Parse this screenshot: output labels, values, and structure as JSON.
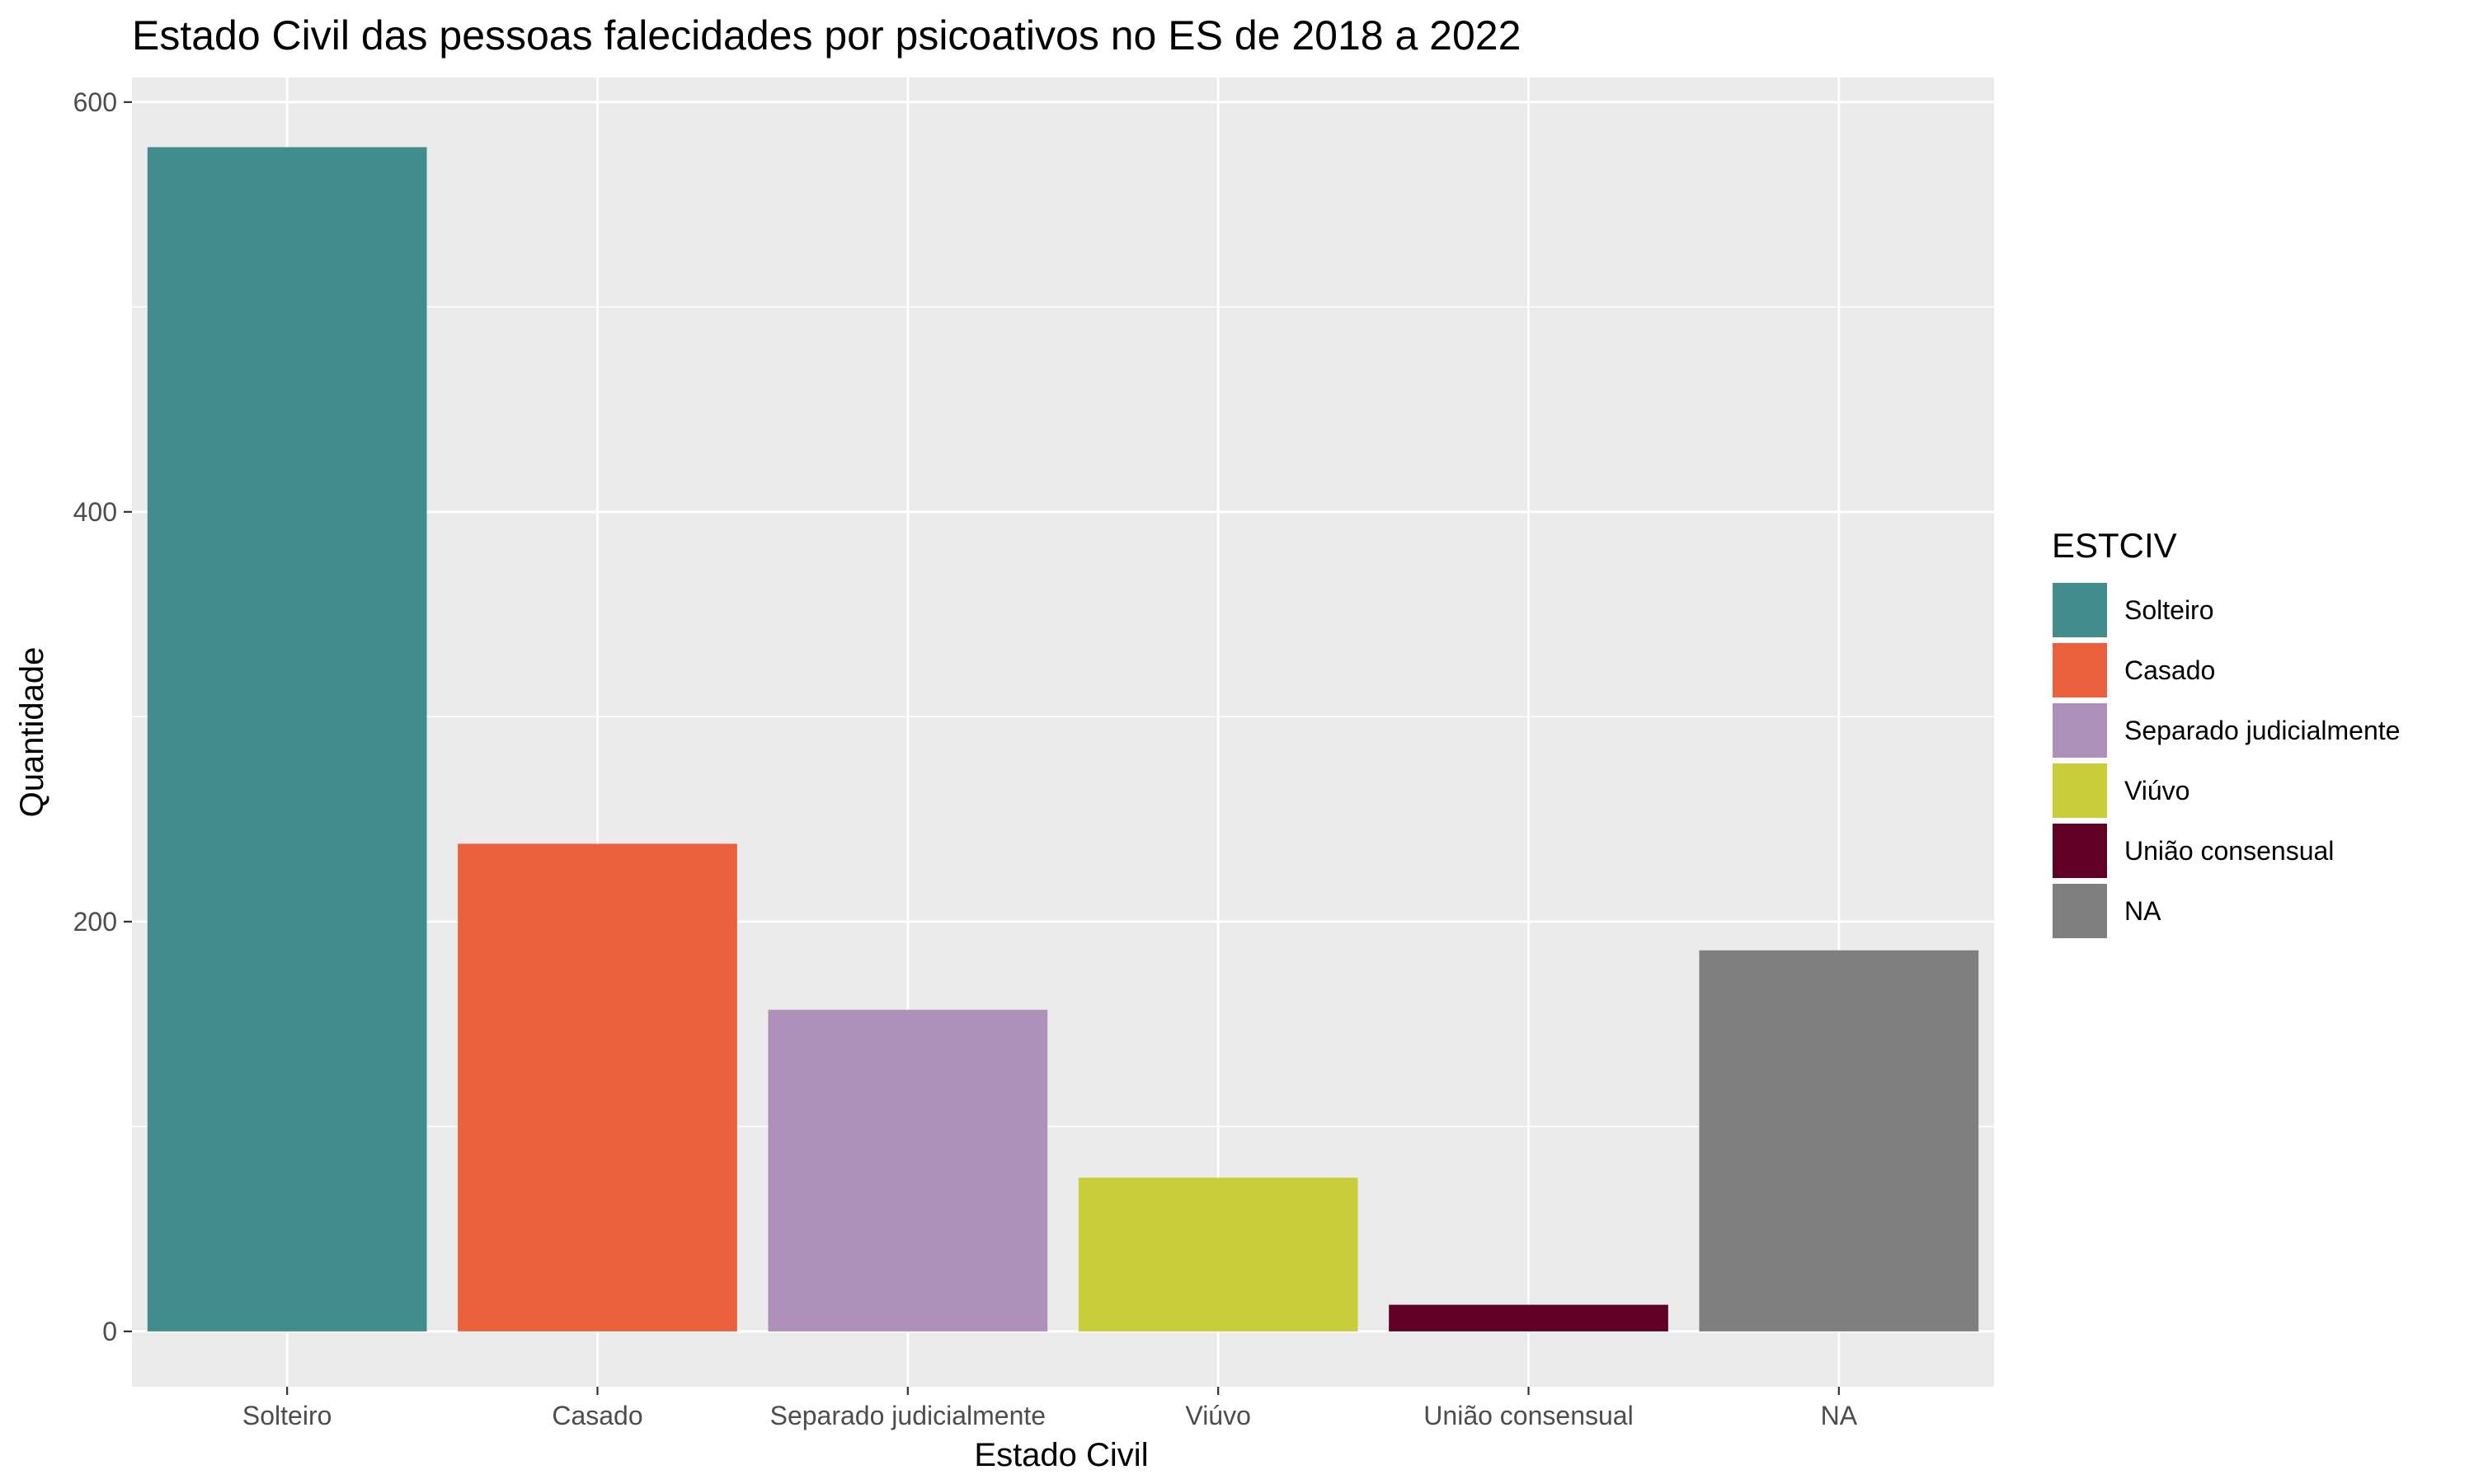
{
  "chart_data": {
    "type": "bar",
    "title": "Estado Civil das pessoas falecidades por psicoativos no ES de 2018 a 2022",
    "xlabel": "Estado Civil",
    "ylabel": "Quantidade",
    "categories": [
      "Solteiro",
      "Casado",
      "Separado judicialmente",
      "Viúvo",
      "União consensual",
      "NA"
    ],
    "values": [
      578,
      238,
      157,
      75,
      13,
      186
    ],
    "colors": [
      "#418c8c",
      "#eb613d",
      "#ae90ba",
      "#c8cd3a",
      "#610024",
      "#7f7f7f"
    ],
    "ylim": [
      -27,
      612
    ],
    "yticks": [
      0,
      200,
      400,
      600
    ],
    "grid": true,
    "legend": {
      "title": "ESTCIV",
      "placement": "right"
    }
  }
}
